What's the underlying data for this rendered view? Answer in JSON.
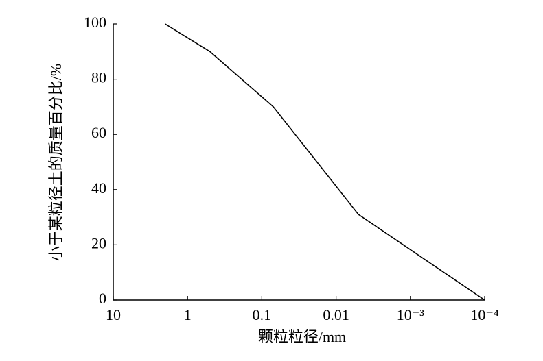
{
  "chart_data": {
    "type": "line",
    "x_label": "颗粒粒径/mm",
    "y_label": "小于某粒径土的质量百分比/%",
    "x": [
      2,
      0.5,
      0.07,
      0.005,
      0.0001
    ],
    "values": [
      100,
      90,
      70,
      31,
      0
    ],
    "color": "#000000",
    "x_log": true,
    "xlim": [
      10,
      0.0001
    ],
    "xticks": [
      10,
      1,
      0.1,
      0.01,
      {
        "value": 0.001,
        "label": "10⁻³"
      },
      {
        "value": 0.0001,
        "label": "10⁻⁴"
      }
    ],
    "ylim": [
      0,
      100
    ],
    "yticks": [
      0,
      20,
      40,
      60,
      80,
      100
    ],
    "grid": false
  }
}
